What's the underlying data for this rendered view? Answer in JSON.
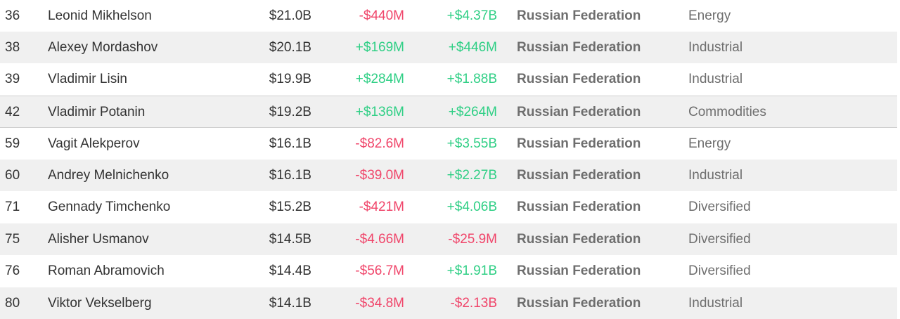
{
  "table": {
    "rows": [
      {
        "rank": "36",
        "name": "Leonid Mikhelson",
        "net_worth": "$21.0B",
        "last_change": "-$440M",
        "ytd_change": "+$4.37B",
        "country": "Russian Federation",
        "industry": "Energy"
      },
      {
        "rank": "38",
        "name": "Alexey Mordashov",
        "net_worth": "$20.1B",
        "last_change": "+$169M",
        "ytd_change": "+$446M",
        "country": "Russian Federation",
        "industry": "Industrial"
      },
      {
        "rank": "39",
        "name": "Vladimir Lisin",
        "net_worth": "$19.9B",
        "last_change": "+$284M",
        "ytd_change": "+$1.88B",
        "country": "Russian Federation",
        "industry": "Industrial"
      },
      {
        "rank": "42",
        "name": "Vladimir Potanin",
        "net_worth": "$19.2B",
        "last_change": "+$136M",
        "ytd_change": "+$264M",
        "country": "Russian Federation",
        "industry": "Commodities"
      },
      {
        "rank": "59",
        "name": "Vagit Alekperov",
        "net_worth": "$16.1B",
        "last_change": "-$82.6M",
        "ytd_change": "+$3.55B",
        "country": "Russian Federation",
        "industry": "Energy"
      },
      {
        "rank": "60",
        "name": "Andrey Melnichenko",
        "net_worth": "$16.1B",
        "last_change": "-$39.0M",
        "ytd_change": "+$2.27B",
        "country": "Russian Federation",
        "industry": "Industrial"
      },
      {
        "rank": "71",
        "name": "Gennady Timchenko",
        "net_worth": "$15.2B",
        "last_change": "-$421M",
        "ytd_change": "+$4.06B",
        "country": "Russian Federation",
        "industry": "Diversified"
      },
      {
        "rank": "75",
        "name": "Alisher Usmanov",
        "net_worth": "$14.5B",
        "last_change": "-$4.66M",
        "ytd_change": "-$25.9M",
        "country": "Russian Federation",
        "industry": "Diversified"
      },
      {
        "rank": "76",
        "name": "Roman Abramovich",
        "net_worth": "$14.4B",
        "last_change": "-$56.7M",
        "ytd_change": "+$1.91B",
        "country": "Russian Federation",
        "industry": "Diversified"
      },
      {
        "rank": "80",
        "name": "Viktor Vekselberg",
        "net_worth": "$14.1B",
        "last_change": "-$34.8M",
        "ytd_change": "-$2.13B",
        "country": "Russian Federation",
        "industry": "Industrial"
      }
    ]
  },
  "colors": {
    "positive": "#2fcf85",
    "negative": "#f0456a",
    "shaded_row": "#f0f0f0",
    "muted_text": "#6e6e6e"
  }
}
